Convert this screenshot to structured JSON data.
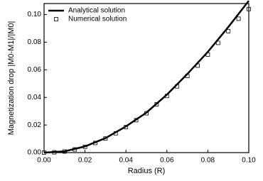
{
  "chart_data": {
    "type": "line",
    "xlabel": "Radius (R)",
    "ylabel": "Magnetization drop |M0-M1|/|M0|",
    "xlim": [
      0,
      0.1
    ],
    "ylim": [
      0,
      0.108
    ],
    "xticks": [
      {
        "value": 0,
        "label": "0.00"
      },
      {
        "value": 0.02,
        "label": "0.02"
      },
      {
        "value": 0.04,
        "label": "0.04"
      },
      {
        "value": 0.06,
        "label": "0.06"
      },
      {
        "value": 0.08,
        "label": "0.08"
      },
      {
        "value": 0.1,
        "label": "0.10"
      }
    ],
    "yticks": [
      {
        "value": 0,
        "label": "0.00"
      },
      {
        "value": 0.02,
        "label": "0.02"
      },
      {
        "value": 0.04,
        "label": "0.04"
      },
      {
        "value": 0.06,
        "label": "0.06"
      },
      {
        "value": 0.08,
        "label": "0.08"
      },
      {
        "value": 0.1,
        "label": "0.10"
      }
    ],
    "legend": "upper-left",
    "series": [
      {
        "name": "Analytical solution",
        "color": "#000000",
        "mark": "line",
        "x": [
          0,
          0.01,
          0.02,
          0.03,
          0.04,
          0.05,
          0.06,
          0.07,
          0.08,
          0.09,
          0.1
        ],
        "values": [
          0,
          0.0009,
          0.0045,
          0.0105,
          0.019,
          0.029,
          0.042,
          0.057,
          0.073,
          0.091,
          0.11
        ]
      },
      {
        "name": "Numerical solution",
        "color": "#000000",
        "mark": "square",
        "x": [
          0,
          0.005,
          0.01,
          0.015,
          0.02,
          0.025,
          0.03,
          0.035,
          0.04,
          0.045,
          0.05,
          0.055,
          0.06,
          0.065,
          0.07,
          0.075,
          0.08,
          0.085,
          0.09,
          0.095,
          0.1
        ],
        "values": [
          0,
          0.0002,
          0.0008,
          0.0023,
          0.0042,
          0.007,
          0.0102,
          0.014,
          0.0185,
          0.0235,
          0.0285,
          0.035,
          0.041,
          0.048,
          0.0555,
          0.063,
          0.071,
          0.0795,
          0.088,
          0.097,
          0.104
        ]
      }
    ]
  }
}
